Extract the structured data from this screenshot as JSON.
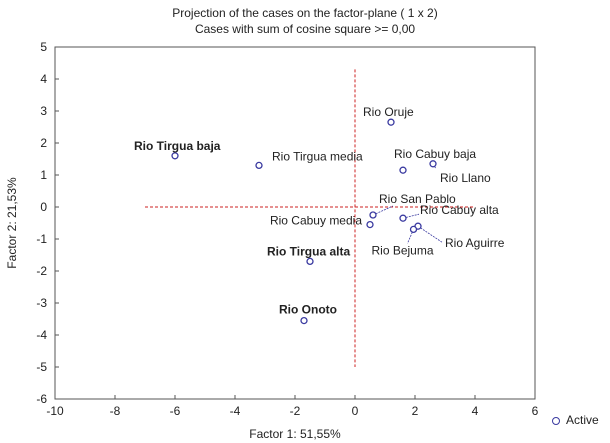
{
  "chart_data": {
    "type": "scatter",
    "title": "Projection of the cases on the factor-plane (  1 x   2)",
    "subtitle": "Cases with sum of cosine square >= 0,00",
    "xlabel": "Factor 1: 51,55%",
    "ylabel": "Factor 2: 21,53%",
    "xlim": [
      -10,
      6
    ],
    "ylim": [
      -6,
      5
    ],
    "xticks": [
      -10,
      -8,
      -6,
      -4,
      -2,
      0,
      2,
      4,
      6
    ],
    "yticks": [
      -6,
      -5,
      -4,
      -3,
      -2,
      -1,
      0,
      1,
      2,
      3,
      4,
      5
    ],
    "grid": false,
    "legend": {
      "position": "bottom-right",
      "entries": [
        "Active"
      ]
    },
    "series": [
      {
        "name": "Active",
        "points": [
          {
            "label": "Rio Tirgua baja",
            "x": -6.0,
            "y": 1.6
          },
          {
            "label": "Rio Tirgua media",
            "x": -3.2,
            "y": 1.3
          },
          {
            "label": "Rio Oruje",
            "x": 1.2,
            "y": 2.65
          },
          {
            "label": "Rio Cabuy baja",
            "x": 1.6,
            "y": 1.15
          },
          {
            "label": "Rio Llano",
            "x": 2.6,
            "y": 1.35
          },
          {
            "label": "Rio San Pablo",
            "x": 0.6,
            "y": -0.25
          },
          {
            "label": "Rio Cabuy media",
            "x": 0.5,
            "y": -0.55
          },
          {
            "label": "Rio Cabuy alta",
            "x": 1.6,
            "y": -0.35
          },
          {
            "label": "Rio Aguirre",
            "x": 2.1,
            "y": -0.6
          },
          {
            "label": "Rio Bejuma",
            "x": 1.95,
            "y": -0.7
          },
          {
            "label": "Rio Tirgua alta",
            "x": -1.5,
            "y": -1.7
          },
          {
            "label": "Rio Onoto",
            "x": -1.7,
            "y": -3.55
          }
        ]
      }
    ],
    "reference_lines": {
      "horizontal": {
        "y": 0,
        "x_from": -7,
        "x_to": 4
      },
      "vertical": {
        "x": 0,
        "y_from": -5,
        "y_to": 4.3
      }
    },
    "colors": {
      "marker": "#3a3aa0",
      "reference_line": "#cc2222"
    }
  }
}
